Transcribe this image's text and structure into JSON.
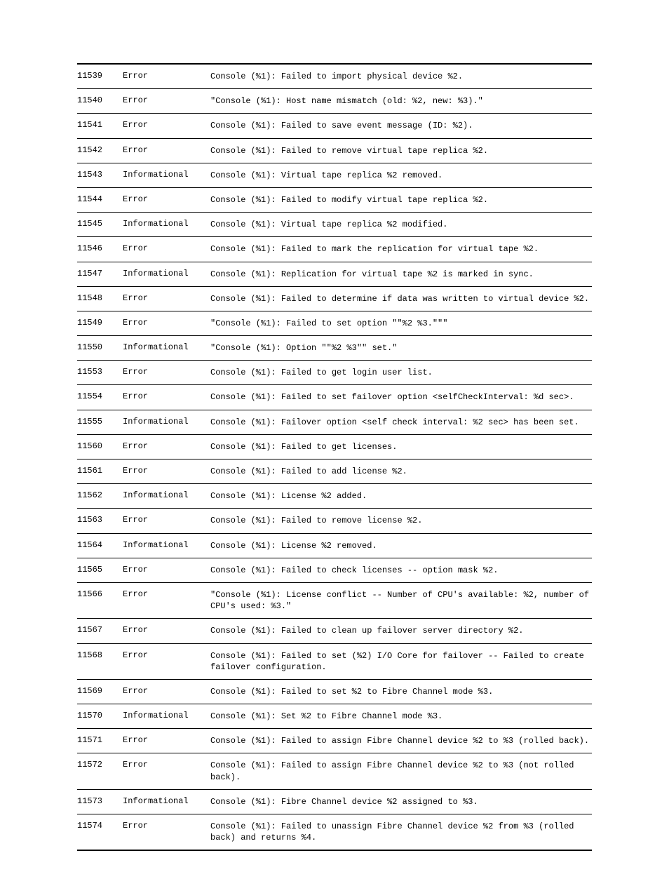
{
  "rows": [
    {
      "id": "11539",
      "severity": "Error",
      "message": "Console (%1): Failed to import physical device %2."
    },
    {
      "id": "11540",
      "severity": "Error",
      "message": "\"Console (%1): Host name mismatch (old: %2, new: %3).\""
    },
    {
      "id": "11541",
      "severity": "Error",
      "message": "Console (%1): Failed to save event message (ID: %2)."
    },
    {
      "id": "11542",
      "severity": "Error",
      "message": "Console (%1): Failed to remove virtual tape replica %2."
    },
    {
      "id": "11543",
      "severity": "Informational",
      "message": "Console (%1): Virtual tape replica %2 removed."
    },
    {
      "id": "11544",
      "severity": "Error",
      "message": "Console (%1): Failed to modify virtual tape replica %2."
    },
    {
      "id": "11545",
      "severity": "Informational",
      "message": "Console (%1): Virtual tape replica %2 modified."
    },
    {
      "id": "11546",
      "severity": "Error",
      "message": "Console (%1): Failed to mark the replication for virtual tape %2."
    },
    {
      "id": "11547",
      "severity": "Informational",
      "message": "Console (%1): Replication for virtual tape %2 is marked in sync."
    },
    {
      "id": "11548",
      "severity": "Error",
      "message": "Console (%1): Failed to determine if data was written to virtual device %2."
    },
    {
      "id": "11549",
      "severity": "Error",
      "message": "\"Console (%1): Failed to set option \"\"%2 %3.\"\"\""
    },
    {
      "id": "11550",
      "severity": "Informational",
      "message": "\"Console (%1): Option \"\"%2 %3\"\" set.\""
    },
    {
      "id": "11553",
      "severity": "Error",
      "message": "Console (%1): Failed to get login user list."
    },
    {
      "id": "11554",
      "severity": "Error",
      "message": "Console (%1): Failed to set failover option <selfCheckInterval: %d sec>."
    },
    {
      "id": "11555",
      "severity": "Informational",
      "message": "Console (%1): Failover option <self check interval: %2 sec> has been set."
    },
    {
      "id": "11560",
      "severity": "Error",
      "message": "Console (%1): Failed to get licenses."
    },
    {
      "id": "11561",
      "severity": "Error",
      "message": "Console (%1): Failed to add license %2."
    },
    {
      "id": "11562",
      "severity": "Informational",
      "message": "Console (%1): License %2 added."
    },
    {
      "id": "11563",
      "severity": "Error",
      "message": "Console (%1): Failed to remove license %2."
    },
    {
      "id": "11564",
      "severity": "Informational",
      "message": "Console (%1): License %2 removed."
    },
    {
      "id": "11565",
      "severity": "Error",
      "message": "Console (%1): Failed to check licenses -- option mask %2."
    },
    {
      "id": "11566",
      "severity": "Error",
      "message": "\"Console (%1): License conflict -- Number of CPU's available: %2, number of CPU's used: %3.\""
    },
    {
      "id": "11567",
      "severity": "Error",
      "message": "Console (%1): Failed to clean up failover server directory %2."
    },
    {
      "id": "11568",
      "severity": "Error",
      "message": "Console (%1): Failed to set (%2) I/O Core for failover -- Failed to create failover configuration."
    },
    {
      "id": "11569",
      "severity": "Error",
      "message": "Console (%1): Failed to set %2 to Fibre Channel mode %3."
    },
    {
      "id": "11570",
      "severity": "Informational",
      "message": "Console (%1): Set %2 to Fibre Channel mode %3."
    },
    {
      "id": "11571",
      "severity": "Error",
      "message": "Console (%1): Failed to assign Fibre Channel device %2 to %3 (rolled back)."
    },
    {
      "id": "11572",
      "severity": "Error",
      "message": "Console (%1): Failed to assign Fibre Channel device %2 to %3 (not rolled back)."
    },
    {
      "id": "11573",
      "severity": "Informational",
      "message": "Console (%1): Fibre Channel device %2 assigned to %3."
    },
    {
      "id": "11574",
      "severity": "Error",
      "message": "Console (%1): Failed to unassign Fibre Channel device %2 from %3 (rolled back) and returns %4."
    }
  ]
}
